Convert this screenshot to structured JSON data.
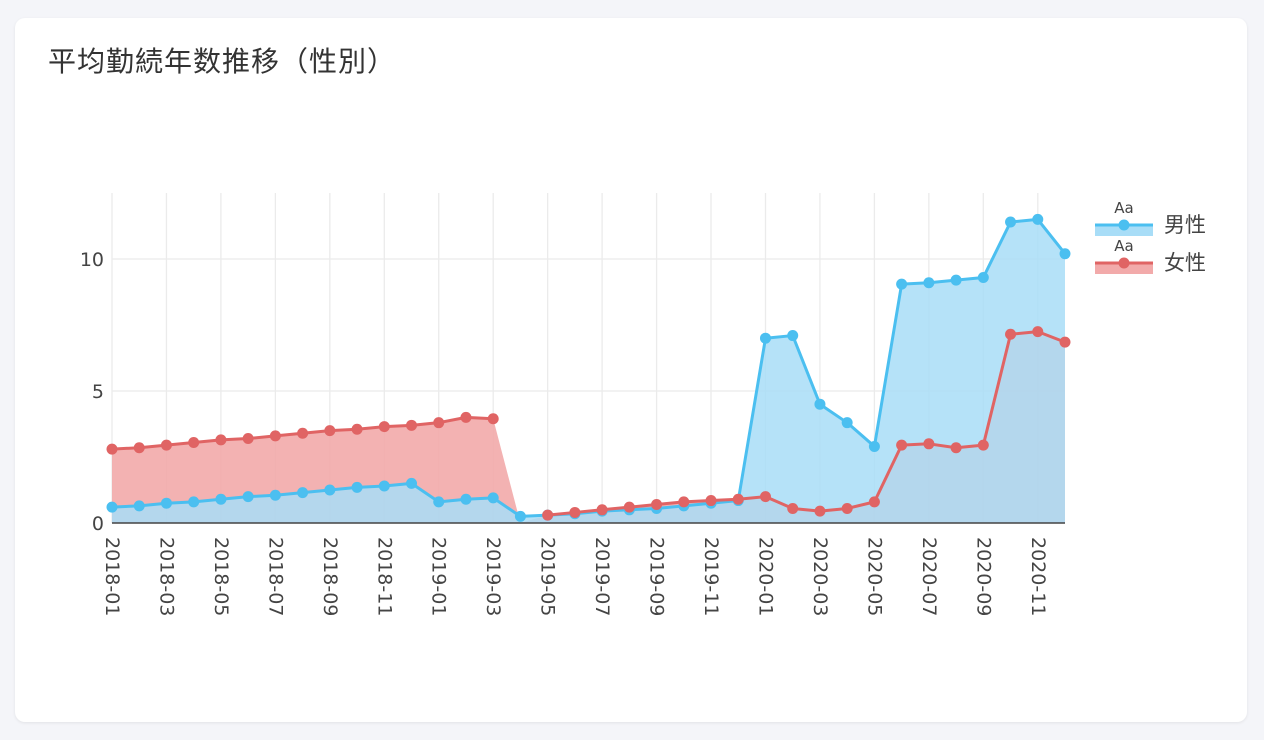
{
  "card": {
    "title": "平均勤続年数推移（性別）"
  },
  "chart_data": {
    "type": "area",
    "title": "平均勤続年数推移（性別）",
    "xlabel": "",
    "ylabel": "",
    "x_ticks": [
      "2018-01",
      "2018-03",
      "2018-05",
      "2018-07",
      "2018-09",
      "2018-11",
      "2019-01",
      "2019-03",
      "2019-05",
      "2019-07",
      "2019-09",
      "2019-11",
      "2020-01",
      "2020-03",
      "2020-05",
      "2020-07",
      "2020-09",
      "2020-11"
    ],
    "y_ticks": [
      0,
      5,
      10
    ],
    "ylim": [
      0,
      12.5
    ],
    "grid": true,
    "legend_position": "top-right",
    "legend_marker_text": "Aa",
    "x": [
      "2018-01",
      "2018-02",
      "2018-03",
      "2018-04",
      "2018-05",
      "2018-06",
      "2018-07",
      "2018-08",
      "2018-09",
      "2018-10",
      "2018-11",
      "2018-12",
      "2019-01",
      "2019-02",
      "2019-03",
      "2019-04",
      "2019-05",
      "2019-06",
      "2019-07",
      "2019-08",
      "2019-09",
      "2019-10",
      "2019-11",
      "2019-12",
      "2020-01",
      "2020-02",
      "2020-03",
      "2020-04",
      "2020-05",
      "2020-06",
      "2020-07",
      "2020-08",
      "2020-09",
      "2020-10",
      "2020-11",
      "2020-12"
    ],
    "series": [
      {
        "name": "男性",
        "color": "#4bbff0",
        "fill": "#a8ddf7",
        "values": [
          0.6,
          0.65,
          0.75,
          0.8,
          0.9,
          1.0,
          1.05,
          1.15,
          1.25,
          1.35,
          1.4,
          1.5,
          0.8,
          0.9,
          0.95,
          0.25,
          0.3,
          0.35,
          0.45,
          0.5,
          0.55,
          0.65,
          0.75,
          0.85,
          7.0,
          7.1,
          4.5,
          3.8,
          2.9,
          9.05,
          9.1,
          9.2,
          9.3,
          11.4,
          11.5,
          10.2
        ]
      },
      {
        "name": "女性",
        "color": "#e06464",
        "fill": "#f2aaaa",
        "values": [
          2.8,
          2.85,
          2.95,
          3.05,
          3.15,
          3.2,
          3.3,
          3.4,
          3.5,
          3.55,
          3.65,
          3.7,
          3.8,
          4.0,
          3.95,
          null,
          0.3,
          0.4,
          0.5,
          0.6,
          0.7,
          0.8,
          0.85,
          0.9,
          1.0,
          0.55,
          0.45,
          0.55,
          0.8,
          2.95,
          3.0,
          2.85,
          2.95,
          7.15,
          7.25,
          6.85
        ]
      }
    ]
  }
}
